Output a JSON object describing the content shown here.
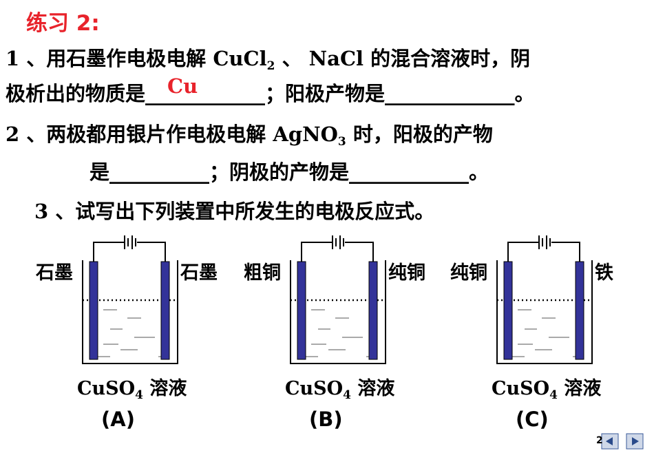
{
  "title": "练习 2:",
  "questions": [
    {
      "lines": [
        [
          "1 、用石墨作电极电解 CuCl",
          "2",
          " 、 NaCl 的混合溶液时，阴"
        ],
        [
          "极析出的物质是____________；阳极产物是_____________。"
        ]
      ],
      "answer": "Cu"
    },
    {
      "lines": [
        [
          "2 、两极都用银片作电极电解 AgNO",
          "3",
          " 时，阳极的产物"
        ],
        [
          "是__________；阴极的产物是____________。"
        ]
      ]
    },
    {
      "lines": [
        [
          "3 、试写出下列装置中所发生的电极反应式。"
        ]
      ]
    }
  ],
  "cells": [
    {
      "left": "石墨",
      "right": "石墨",
      "solution": [
        "CuSO",
        "4",
        " 溶液"
      ],
      "caption": "(A)"
    },
    {
      "left": "粗铜",
      "right": "纯铜",
      "solution": [
        "CuSO",
        "4",
        " 溶液"
      ],
      "caption": "(B)"
    },
    {
      "left": "纯铜",
      "right": "铁",
      "solution": [
        "CuSO",
        "4",
        " 溶液"
      ],
      "caption": "(C)"
    }
  ],
  "page_number": "2"
}
